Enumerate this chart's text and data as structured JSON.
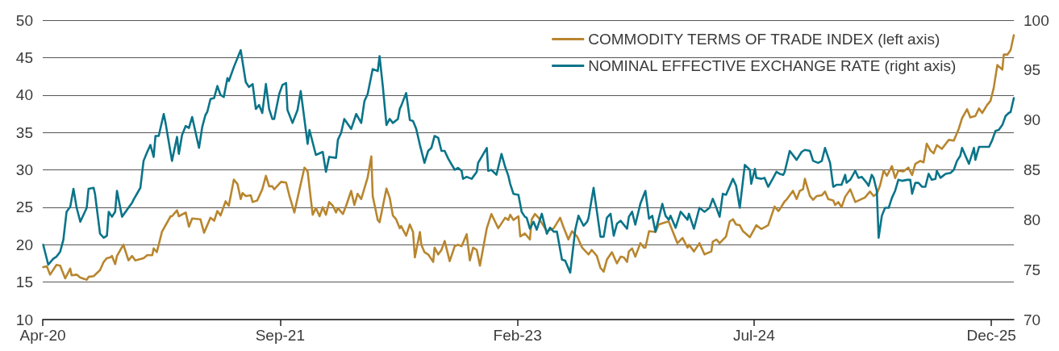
{
  "chart_data": {
    "type": "line",
    "xlim": [
      "2020-04-01",
      "2026-01-19"
    ],
    "xticks": [
      {
        "value": "2020-04-01",
        "label": "Apr-20"
      },
      {
        "value": "2021-09-01",
        "label": "Sep-21"
      },
      {
        "value": "2023-02-01",
        "label": "Feb-23"
      },
      {
        "value": "2024-07-01",
        "label": "Jul-24"
      },
      {
        "value": "2025-12-01",
        "label": "Dec-25"
      }
    ],
    "ylim": [
      10,
      50
    ],
    "yticks": [
      10,
      15,
      20,
      25,
      30,
      35,
      40,
      45,
      50
    ],
    "y2lim": [
      70,
      100
    ],
    "y2ticks": [
      70,
      75,
      80,
      85,
      90,
      95,
      100
    ],
    "grid": "y",
    "legend": "top right",
    "series": [
      {
        "name": "COMMODITY TERMS OF TRADE INDEX (left axis)",
        "color": "#b8862f",
        "x": [
          "2020-04-02",
          "2020-04-10",
          "2020-04-17",
          "2020-05-01",
          "2020-05-09",
          "2020-05-20",
          "2020-05-31",
          "2020-06-03",
          "2020-06-14",
          "2020-06-22",
          "2020-07-06",
          "2020-07-10",
          "2020-07-21",
          "2020-08-04",
          "2020-08-12",
          "2020-08-19",
          "2020-08-26",
          "2020-08-30",
          "2020-09-06",
          "2020-09-10",
          "2020-09-24",
          "2020-10-05",
          "2020-10-13",
          "2020-10-20",
          "2020-11-07",
          "2020-11-15",
          "2020-11-26",
          "2020-11-29",
          "2020-12-06",
          "2020-12-17",
          "2021-01-05",
          "2021-01-08",
          "2021-01-19",
          "2021-01-23",
          "2021-02-07",
          "2021-02-14",
          "2021-02-21",
          "2021-03-11",
          "2021-03-19",
          "2021-04-02",
          "2021-04-10",
          "2021-04-17",
          "2021-04-24",
          "2021-05-05",
          "2021-05-12",
          "2021-05-23",
          "2021-05-31",
          "2021-06-07",
          "2021-06-11",
          "2021-06-18",
          "2021-06-29",
          "2021-07-03",
          "2021-07-13",
          "2021-07-24",
          "2021-08-01",
          "2021-08-08",
          "2021-08-15",
          "2021-08-19",
          "2021-09-03",
          "2021-09-14",
          "2021-09-21",
          "2021-10-02",
          "2021-10-24",
          "2021-10-31",
          "2021-11-11",
          "2021-11-18",
          "2021-11-26",
          "2021-12-03",
          "2021-12-10",
          "2021-12-17",
          "2021-12-25",
          "2022-01-01",
          "2022-01-05",
          "2022-01-16",
          "2022-01-23",
          "2022-02-03",
          "2022-02-10",
          "2022-02-17",
          "2022-02-25",
          "2022-03-11",
          "2022-03-19",
          "2022-03-22",
          "2022-04-02",
          "2022-04-06",
          "2022-04-21",
          "2022-04-28",
          "2022-05-05",
          "2022-05-12",
          "2022-05-20",
          "2022-05-23",
          "2022-06-03",
          "2022-06-11",
          "2022-06-18",
          "2022-06-22",
          "2022-07-03",
          "2022-07-06",
          "2022-07-13",
          "2022-07-21",
          "2022-08-01",
          "2022-08-04",
          "2022-08-12",
          "2022-08-19",
          "2022-08-26",
          "2022-09-06",
          "2022-09-17",
          "2022-09-24",
          "2022-10-02",
          "2022-10-13",
          "2022-10-20",
          "2022-10-27",
          "2022-11-04",
          "2022-11-11",
          "2022-11-26",
          "2022-12-06",
          "2022-12-21",
          "2023-01-05",
          "2023-01-12",
          "2023-01-16",
          "2023-01-23",
          "2023-02-03",
          "2023-02-07",
          "2023-02-17",
          "2023-02-28",
          "2023-03-04",
          "2023-03-11",
          "2023-03-19",
          "2023-04-06",
          "2023-04-21",
          "2023-05-05",
          "2023-05-12",
          "2023-05-23",
          "2023-05-31",
          "2023-06-11",
          "2023-06-22",
          "2023-07-06",
          "2023-07-13",
          "2023-07-24",
          "2023-08-01",
          "2023-08-08",
          "2023-08-15",
          "2023-08-26",
          "2023-09-06",
          "2023-09-14",
          "2023-09-21",
          "2023-09-28",
          "2023-10-02",
          "2023-10-09",
          "2023-10-16",
          "2023-10-27",
          "2023-11-04",
          "2023-11-07",
          "2023-11-15",
          "2023-11-29",
          "2023-12-06",
          "2023-12-21",
          "2023-12-28",
          "2024-01-16",
          "2024-01-27",
          "2024-02-07",
          "2024-02-10",
          "2024-02-21",
          "2024-03-04",
          "2024-03-15",
          "2024-03-30",
          "2024-04-02",
          "2024-04-10",
          "2024-04-17",
          "2024-05-01",
          "2024-05-09",
          "2024-05-16",
          "2024-05-23",
          "2024-05-31",
          "2024-06-07",
          "2024-06-22",
          "2024-06-29",
          "2024-07-06",
          "2024-07-17",
          "2024-08-01",
          "2024-08-15",
          "2024-08-23",
          "2024-08-26",
          "2024-09-06",
          "2024-09-10",
          "2024-09-24",
          "2024-10-02",
          "2024-10-09",
          "2024-10-16",
          "2024-10-20",
          "2024-10-31",
          "2024-11-07",
          "2024-11-15",
          "2024-11-26",
          "2024-12-03",
          "2024-12-10",
          "2024-12-21",
          "2024-12-25",
          "2025-01-01",
          "2025-01-08",
          "2025-01-16",
          "2025-01-27",
          "2025-02-07",
          "2025-02-21",
          "2025-02-28",
          "2025-03-11",
          "2025-03-19",
          "2025-03-26",
          "2025-04-02",
          "2025-04-10",
          "2025-04-17",
          "2025-04-28",
          "2025-05-05",
          "2025-05-12",
          "2025-05-23",
          "2025-06-03",
          "2025-06-11",
          "2025-06-18",
          "2025-06-29",
          "2025-07-06",
          "2025-07-13",
          "2025-07-21",
          "2025-07-28",
          "2025-08-04",
          "2025-08-15",
          "2025-08-30",
          "2025-09-10",
          "2025-09-21",
          "2025-09-28",
          "2025-10-09",
          "2025-10-16",
          "2025-10-27",
          "2025-11-04",
          "2025-11-11",
          "2025-11-22",
          "2025-11-29",
          "2025-12-06",
          "2025-12-14",
          "2025-12-25",
          "2025-12-28",
          "2026-01-05",
          "2026-01-12",
          "2026-01-19"
        ],
        "values": [
          17.0,
          17.1,
          16.0,
          17.3,
          17.2,
          15.5,
          16.8,
          15.9,
          16.0,
          15.6,
          15.3,
          15.7,
          15.8,
          16.6,
          17.7,
          18.2,
          18.3,
          18.5,
          17.4,
          18.5,
          20.0,
          17.9,
          18.5,
          17.9,
          18.2,
          18.6,
          18.6,
          19.5,
          19.0,
          21.7,
          23.8,
          23.8,
          24.6,
          23.8,
          24.3,
          22.4,
          23.5,
          23.4,
          21.6,
          23.6,
          23.2,
          24.5,
          23.9,
          25.8,
          25.2,
          28.7,
          28.1,
          26.1,
          26.9,
          26.5,
          26.6,
          25.7,
          25.9,
          27.4,
          29.2,
          27.8,
          27.8,
          27.4,
          28.4,
          28.3,
          26.6,
          24.3,
          30.3,
          29.8,
          24.0,
          24.9,
          23.8,
          25.0,
          24.0,
          25.7,
          25.2,
          24.3,
          24.9,
          24.1,
          25.2,
          27.2,
          25.3,
          26.8,
          26.1,
          29.0,
          31.8,
          26.5,
          23.3,
          23.0,
          27.5,
          26.3,
          23.9,
          23.4,
          22.2,
          22.5,
          21.2,
          22.7,
          21.7,
          18.3,
          21.7,
          20.0,
          19.0,
          18.7,
          17.7,
          19.6,
          18.7,
          19.3,
          20.5,
          17.8,
          19.8,
          20.0,
          19.8,
          21.4,
          17.9,
          19.6,
          19.3,
          17.2,
          22.2,
          24.1,
          22.2,
          23.6,
          23.3,
          24.0,
          23.3,
          23.8,
          21.1,
          21.5,
          20.7,
          23.4,
          24.1,
          23.6,
          21.8,
          22.2,
          23.6,
          22.4,
          20.7,
          21.8,
          21.1,
          19.6,
          18.7,
          19.3,
          18.5,
          16.9,
          16.4,
          18.0,
          19.0,
          17.5,
          18.4,
          18.3,
          17.7,
          19.1,
          19.5,
          18.4,
          20.2,
          19.6,
          19.6,
          21.8,
          21.7,
          22.7,
          23.0,
          23.1,
          20.2,
          20.9,
          19.6,
          20.0,
          19.1,
          20.2,
          18.7,
          19.1,
          20.4,
          20.7,
          20.2,
          21.1,
          23.1,
          23.4,
          22.7,
          22.6,
          21.8,
          21.0,
          21.8,
          22.6,
          22.1,
          22.6,
          25.1,
          24.5,
          24.7,
          25.8,
          26.0,
          27.2,
          26.1,
          27.2,
          27.4,
          28.8,
          26.5,
          26.0,
          26.5,
          26.6,
          27.1,
          26.1,
          25.9,
          25.3,
          25.7,
          25.0,
          26.4,
          27.4,
          25.7,
          26.1,
          26.3,
          27.1,
          26.5,
          26.8,
          27.9,
          29.9,
          29.2,
          30.5,
          28.9,
          29.9,
          29.8,
          30.3,
          29.3,
          30.8,
          31.2,
          31.0,
          33.5,
          32.6,
          32.2,
          33.3,
          32.8,
          34.0,
          33.9,
          35.5,
          36.9,
          38.1,
          37.0,
          37.2,
          38.2,
          37.6,
          38.7,
          39.2,
          40.9,
          44.0,
          43.4,
          45.4,
          45.4,
          46.0,
          48.0
        ]
      },
      {
        "name": "NOMINAL EFFECTIVE EXCHANGE RATE (right axis)",
        "color": "#0a7489",
        "axis": "y2",
        "x": [
          "2020-04-02",
          "2020-04-13",
          "2020-04-24",
          "2020-05-01",
          "2020-05-09",
          "2020-05-16",
          "2020-05-23",
          "2020-05-31",
          "2020-06-07",
          "2020-06-14",
          "2020-06-22",
          "2020-07-06",
          "2020-07-10",
          "2020-07-21",
          "2020-07-24",
          "2020-08-04",
          "2020-08-12",
          "2020-08-19",
          "2020-08-23",
          "2020-08-30",
          "2020-09-06",
          "2020-09-10",
          "2020-09-21",
          "2020-10-05",
          "2020-10-13",
          "2020-10-16",
          "2020-10-31",
          "2020-11-07",
          "2020-11-15",
          "2020-11-22",
          "2020-11-29",
          "2020-12-03",
          "2020-12-10",
          "2020-12-21",
          "2020-12-25",
          "2021-01-08",
          "2021-01-19",
          "2021-01-23",
          "2021-01-30",
          "2021-02-07",
          "2021-02-14",
          "2021-02-21",
          "2021-03-08",
          "2021-03-15",
          "2021-03-22",
          "2021-03-26",
          "2021-04-02",
          "2021-04-10",
          "2021-04-17",
          "2021-04-24",
          "2021-05-01",
          "2021-05-09",
          "2021-05-12",
          "2021-05-23",
          "2021-06-07",
          "2021-06-18",
          "2021-06-25",
          "2021-07-03",
          "2021-07-10",
          "2021-07-17",
          "2021-07-24",
          "2021-08-01",
          "2021-08-08",
          "2021-08-15",
          "2021-08-19",
          "2021-08-30",
          "2021-09-06",
          "2021-09-14",
          "2021-09-17",
          "2021-09-28",
          "2021-10-09",
          "2021-10-16",
          "2021-10-31",
          "2021-11-04",
          "2021-11-18",
          "2021-12-03",
          "2021-12-10",
          "2021-12-17",
          "2022-01-01",
          "2022-01-05",
          "2022-01-12",
          "2022-01-19",
          "2022-02-03",
          "2022-02-14",
          "2022-02-25",
          "2022-03-04",
          "2022-03-11",
          "2022-03-22",
          "2022-04-02",
          "2022-04-06",
          "2022-04-13",
          "2022-04-21",
          "2022-04-28",
          "2022-05-05",
          "2022-05-16",
          "2022-05-20",
          "2022-05-23",
          "2022-06-03",
          "2022-06-11",
          "2022-06-18",
          "2022-06-25",
          "2022-07-03",
          "2022-07-13",
          "2022-07-21",
          "2022-07-28",
          "2022-08-04",
          "2022-08-12",
          "2022-08-19",
          "2022-08-26",
          "2022-09-03",
          "2022-09-17",
          "2022-09-24",
          "2022-10-02",
          "2022-10-05",
          "2022-10-13",
          "2022-10-24",
          "2022-11-04",
          "2022-11-07",
          "2022-11-26",
          "2022-11-29",
          "2022-12-06",
          "2022-12-17",
          "2022-12-28",
          "2023-01-05",
          "2023-01-12",
          "2023-01-16",
          "2023-01-23",
          "2023-02-03",
          "2023-02-10",
          "2023-02-17",
          "2023-02-21",
          "2023-02-28",
          "2023-03-08",
          "2023-03-15",
          "2023-03-26",
          "2023-04-06",
          "2023-04-13",
          "2023-04-21",
          "2023-04-28",
          "2023-05-09",
          "2023-05-16",
          "2023-05-27",
          "2023-06-07",
          "2023-06-14",
          "2023-06-25",
          "2023-07-03",
          "2023-07-06",
          "2023-07-17",
          "2023-08-01",
          "2023-08-08",
          "2023-08-15",
          "2023-08-23",
          "2023-08-30",
          "2023-09-06",
          "2023-09-14",
          "2023-09-28",
          "2023-10-02",
          "2023-10-09",
          "2023-10-16",
          "2023-10-27",
          "2023-11-07",
          "2023-11-15",
          "2023-11-22",
          "2023-11-29",
          "2023-12-14",
          "2023-12-21",
          "2023-12-28",
          "2024-01-01",
          "2024-01-12",
          "2024-01-23",
          "2024-02-07",
          "2024-02-10",
          "2024-02-21",
          "2024-03-04",
          "2024-03-15",
          "2024-03-26",
          "2024-04-02",
          "2024-04-10",
          "2024-04-17",
          "2024-04-24",
          "2024-05-01",
          "2024-05-16",
          "2024-05-23",
          "2024-05-31",
          "2024-06-11",
          "2024-06-22",
          "2024-06-25",
          "2024-07-03",
          "2024-07-06",
          "2024-07-17",
          "2024-07-24",
          "2024-08-01",
          "2024-08-12",
          "2024-08-19",
          "2024-08-26",
          "2024-09-03",
          "2024-09-06",
          "2024-09-17",
          "2024-10-02",
          "2024-10-13",
          "2024-10-20",
          "2024-10-31",
          "2024-11-07",
          "2024-11-18",
          "2024-11-26",
          "2024-12-03",
          "2024-12-14",
          "2024-12-21",
          "2024-12-28",
          "2025-01-08",
          "2025-01-16",
          "2025-01-19",
          "2025-01-27",
          "2025-02-07",
          "2025-02-14",
          "2025-02-21",
          "2025-03-04",
          "2025-03-08",
          "2025-03-15",
          "2025-03-19",
          "2025-03-26",
          "2025-03-30",
          "2025-04-06",
          "2025-04-13",
          "2025-04-21",
          "2025-04-28",
          "2025-05-05",
          "2025-05-12",
          "2025-05-20",
          "2025-05-31",
          "2025-06-07",
          "2025-06-11",
          "2025-06-18",
          "2025-06-25",
          "2025-07-03",
          "2025-07-10",
          "2025-07-17",
          "2025-07-24",
          "2025-08-01",
          "2025-08-04",
          "2025-08-12",
          "2025-08-23",
          "2025-09-03",
          "2025-09-10",
          "2025-09-17",
          "2025-09-24",
          "2025-09-28",
          "2025-10-13",
          "2025-10-24",
          "2025-10-27",
          "2025-11-04",
          "2025-11-26",
          "2025-12-03",
          "2025-12-10",
          "2025-12-17",
          "2025-12-25",
          "2026-01-01",
          "2026-01-08",
          "2026-01-12",
          "2026-01-19"
        ],
        "values": [
          77.5,
          75.5,
          76.1,
          76.3,
          76.8,
          78.0,
          80.8,
          81.3,
          83.1,
          81.2,
          79.8,
          81.2,
          83.1,
          83.2,
          82.6,
          78.6,
          78.2,
          78.4,
          80.8,
          80.3,
          80.8,
          82.9,
          80.3,
          81.2,
          81.7,
          82.0,
          83.2,
          85.9,
          86.8,
          87.5,
          86.3,
          88.4,
          88.4,
          90.6,
          89.7,
          85.9,
          88.3,
          86.6,
          88.5,
          89.4,
          89.2,
          90.3,
          87.2,
          89.3,
          90.5,
          90.8,
          92.1,
          92.2,
          93.4,
          92.5,
          92.3,
          94.2,
          93.9,
          95.3,
          97.0,
          93.8,
          93.3,
          93.6,
          91.1,
          91.5,
          90.7,
          93.6,
          91.1,
          90.1,
          90.1,
          92.6,
          93.5,
          93.7,
          91.0,
          89.7,
          91.0,
          92.9,
          87.6,
          89.0,
          86.5,
          86.8,
          84.8,
          86.3,
          86.2,
          88.0,
          88.7,
          90.1,
          89.1,
          90.6,
          89.7,
          91.9,
          92.6,
          95.1,
          94.9,
          96.4,
          93.4,
          89.5,
          90.1,
          89.7,
          90.1,
          91.1,
          91.4,
          92.7,
          90.0,
          89.9,
          89.1,
          87.5,
          85.7,
          86.9,
          87.2,
          88.4,
          88.2,
          86.9,
          86.9,
          86.1,
          85.0,
          85.2,
          84.9,
          84.1,
          84.3,
          84.1,
          84.8,
          85.7,
          87.2,
          84.9,
          85.0,
          84.5,
          86.6,
          85.3,
          84.4,
          83.6,
          82.6,
          82.5,
          80.8,
          80.3,
          80.2,
          79.1,
          79.8,
          79.0,
          80.6,
          78.6,
          79.2,
          78.8,
          78.8,
          76.0,
          75.9,
          74.7,
          79.0,
          80.4,
          79.4,
          79.8,
          80.2,
          83.2,
          78.3,
          78.3,
          80.2,
          80.6,
          78.4,
          79.6,
          79.9,
          79.1,
          80.3,
          80.8,
          79.5,
          81.6,
          82.9,
          80.1,
          80.4,
          78.8,
          81.6,
          80.4,
          80.0,
          80.4,
          79.2,
          80.8,
          80.0,
          80.6,
          79.1,
          81.2,
          80.8,
          81.2,
          82.1,
          81.2,
          80.3,
          82.6,
          82.5,
          84.1,
          83.4,
          81.2,
          85.5,
          85.0,
          83.6,
          85.1,
          84.2,
          84.1,
          84.2,
          83.3,
          84.2,
          84.8,
          84.6,
          84.5,
          84.8,
          86.9,
          86.0,
          86.8,
          87.0,
          86.9,
          85.9,
          85.7,
          85.9,
          87.2,
          85.7,
          83.3,
          83.5,
          83.5,
          84.5,
          83.7,
          84.0,
          84.9,
          84.2,
          84.3,
          83.7,
          83.4,
          84.5,
          84.2,
          82.9,
          78.2,
          80.4,
          81.2,
          81.2,
          82.2,
          82.9,
          84.0,
          83.9,
          84.0,
          84.0,
          82.6,
          83.7,
          83.7,
          83.3,
          83.3,
          84.6,
          84.0,
          84.1,
          84.9,
          84.2,
          84.6,
          84.7,
          85.0,
          85.9,
          86.4,
          87.2,
          85.6,
          87.2,
          86.0,
          87.3,
          87.3,
          88.0,
          88.9,
          89.0,
          89.5,
          90.4,
          90.7,
          90.8,
          92.2
        ]
      }
    ]
  }
}
